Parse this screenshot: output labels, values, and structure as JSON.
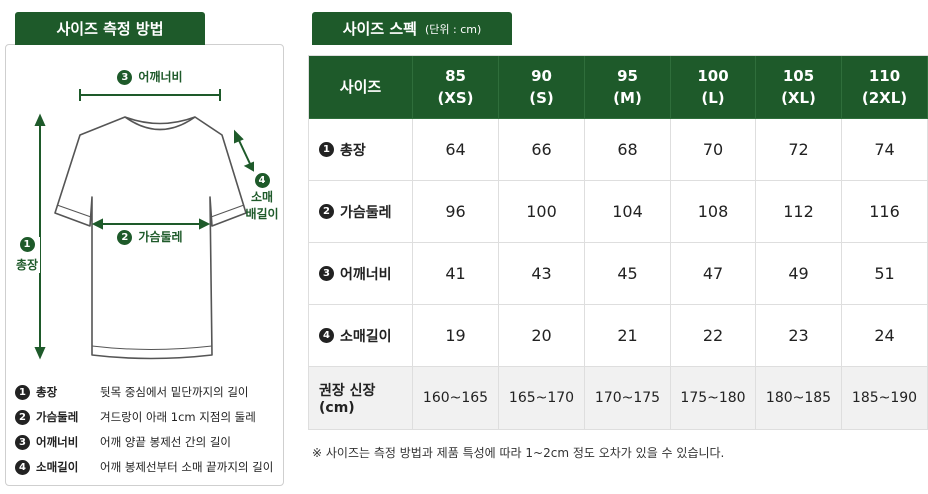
{
  "measure": {
    "title": "사이즈 측정 방법",
    "diagram": {
      "shoulder": {
        "number": "3",
        "label": "어깨너비"
      },
      "chest": {
        "number": "2",
        "label": "가슴둘레"
      },
      "length": {
        "number": "1",
        "label": "총장"
      },
      "sleeve": {
        "number": "4",
        "lines": [
          "소매",
          "배길이"
        ]
      }
    },
    "legend": [
      {
        "number": "1",
        "name": "총장",
        "desc": "뒷목 중심에서 밑단까지의 길이"
      },
      {
        "number": "2",
        "name": "가슴둘레",
        "desc": "겨드랑이 아래 1cm 지점의 둘레"
      },
      {
        "number": "3",
        "name": "어깨너비",
        "desc": "어깨 양끝 봉제선 간의 길이"
      },
      {
        "number": "4",
        "name": "소매길이",
        "desc": "어깨 봉제선부터 소매 끝까지의 길이"
      }
    ]
  },
  "spec": {
    "title": "사이즈 스펙",
    "unit": "(단위 : cm)",
    "table": {
      "corner": "사이즈",
      "sizes": [
        {
          "size": "85",
          "code": "(XS)"
        },
        {
          "size": "90",
          "code": "(S)"
        },
        {
          "size": "95",
          "code": "(M)"
        },
        {
          "size": "100",
          "code": "(L)"
        },
        {
          "size": "105",
          "code": "(XL)"
        },
        {
          "size": "110",
          "code": "(2XL)"
        }
      ],
      "rows": [
        {
          "number": "1",
          "label": "총장",
          "values": [
            64,
            66,
            68,
            70,
            72,
            74
          ]
        },
        {
          "number": "2",
          "label": "가슴둘레",
          "values": [
            96,
            100,
            104,
            108,
            112,
            116
          ]
        },
        {
          "number": "3",
          "label": "어깨너비",
          "values": [
            41,
            43,
            45,
            47,
            49,
            51
          ]
        },
        {
          "number": "4",
          "label": "소매길이",
          "values": [
            19,
            20,
            21,
            22,
            23,
            24
          ]
        }
      ],
      "height_row": {
        "label": "권장 신장 (cm)",
        "values": [
          "160~165",
          "165~170",
          "170~175",
          "175~180",
          "180~185",
          "185~190"
        ]
      }
    },
    "footnote": "※ 사이즈는 측정 방법과 제품 특성에 따라 1~2cm 정도 오차가 있을 수 있습니다."
  }
}
